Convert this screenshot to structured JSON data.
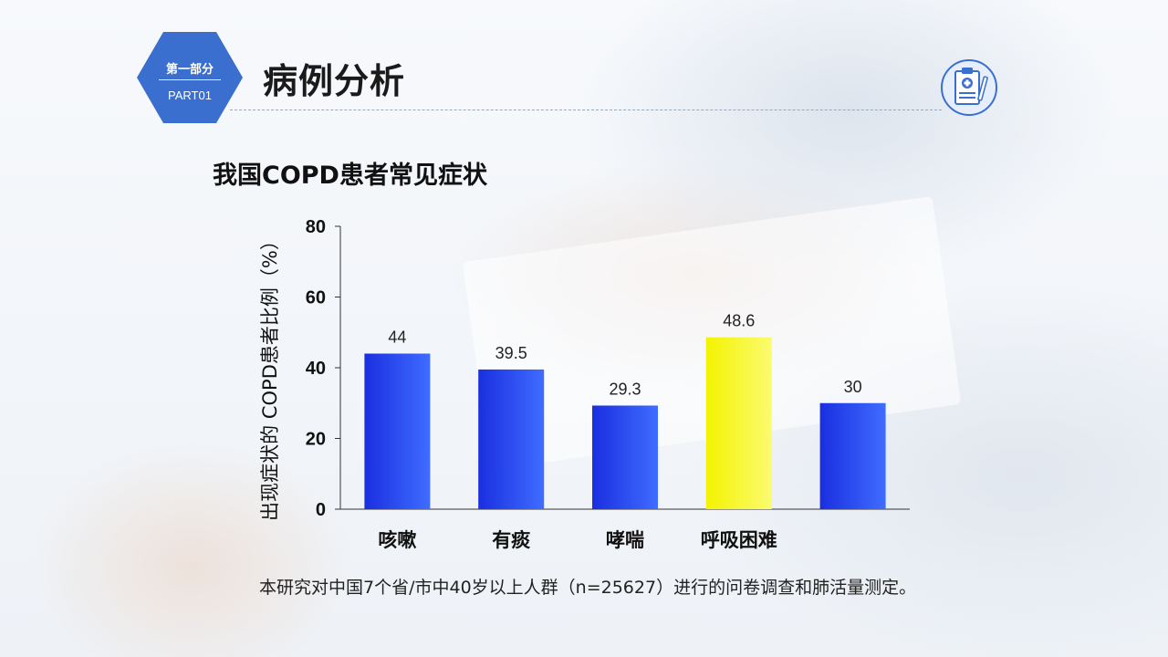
{
  "header": {
    "badge_line1": "第一部分",
    "badge_line2": "PART01",
    "title": "病例分析"
  },
  "icons": {
    "badge_shape": "hexagon-icon",
    "header_icon": "clipboard-medical-icon"
  },
  "colors": {
    "accent": "#3a6fd0",
    "bar_primary": "#1f3fe6",
    "bar_highlight": "#f5f51a"
  },
  "chart_data": {
    "type": "bar",
    "title": "我国COPD患者常见症状",
    "ylabel": "出现症状的 COPD患者比例（%）",
    "xlabel": "",
    "categories": [
      "咳嗽",
      "有痰",
      "哮喘",
      "呼吸困难",
      ""
    ],
    "values": [
      44,
      39.5,
      29.3,
      48.6,
      30
    ],
    "data_labels": [
      "44",
      "39.5",
      "29.3",
      "48.6",
      "30"
    ],
    "highlight_index": 3,
    "ylim": [
      0,
      80
    ],
    "yticks": [
      0,
      20,
      40,
      60,
      80
    ],
    "grid": false,
    "legend": "none"
  },
  "footnote": "本研究对中国7个省/市中40岁以上人群（n=25627）进行的问卷调查和肺活量测定。"
}
